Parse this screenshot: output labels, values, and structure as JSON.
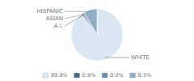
{
  "chart_data": {
    "type": "pie",
    "categories": [
      "WHITE",
      "A.I.",
      "ASIAN",
      "HISPANIC"
    ],
    "values": [
      89.9,
      0.9,
      0.9,
      8.3
    ],
    "colors": [
      "#dce6f0",
      "#4a6a84",
      "#6b8fa8",
      "#8fafc5"
    ],
    "value_labels": [
      "89.9%",
      "0.9%",
      "0.9%",
      "8.3%"
    ],
    "legend": "bottom"
  }
}
